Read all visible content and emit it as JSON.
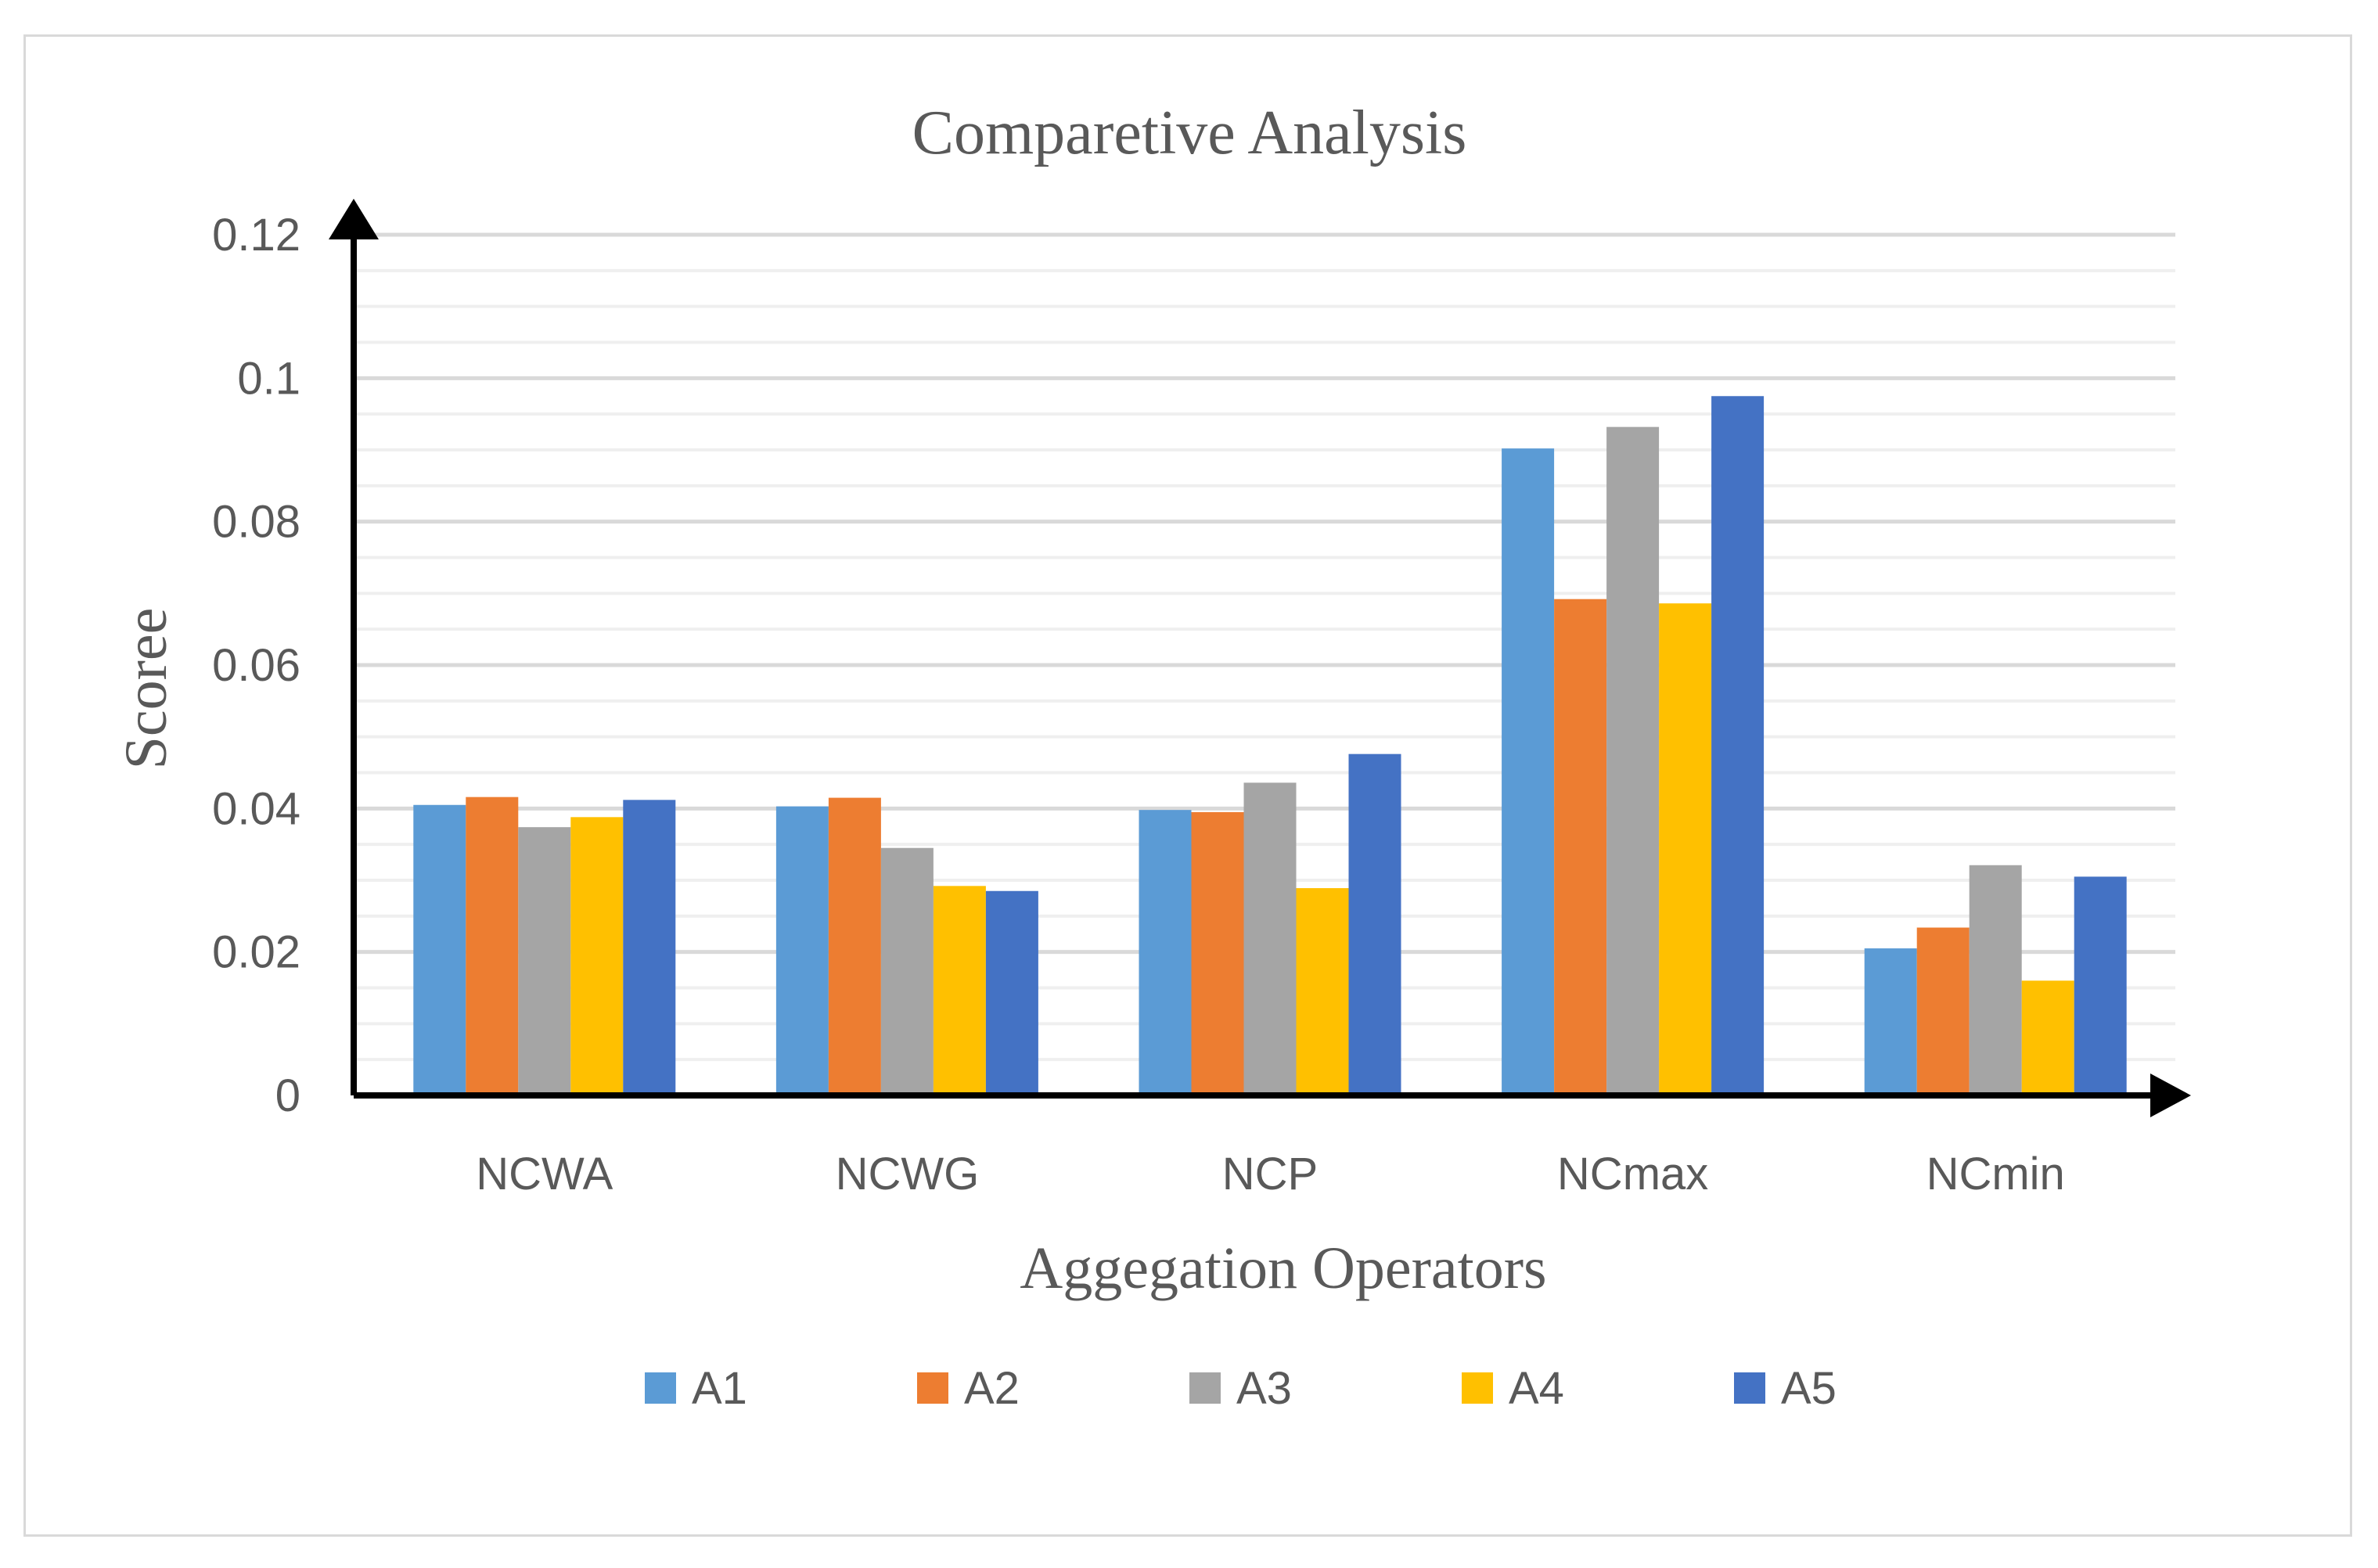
{
  "chart_data": {
    "type": "bar",
    "title": "Comparetive Analysis",
    "xlabel": "Aggegation Operators",
    "ylabel": "Scoree",
    "categories": [
      "NCWA",
      "NCWG",
      "NCP",
      "NCmax",
      "NCmin"
    ],
    "ylim": [
      0,
      0.12
    ],
    "yticks": [
      "0",
      "0.02",
      "0.04",
      "0.06",
      "0.08",
      "0.1",
      "0.12"
    ],
    "ytick_values": [
      0,
      0.02,
      0.04,
      0.06,
      0.08,
      0.1,
      0.12
    ],
    "minor_grid_step": 0.005,
    "grid": true,
    "legend_position": "bottom",
    "series": [
      {
        "name": "A1",
        "color": "#5b9bd5",
        "values": [
          0.0405,
          0.0403,
          0.0398,
          0.0902,
          0.0205
        ]
      },
      {
        "name": "A2",
        "color": "#ed7d31",
        "values": [
          0.0416,
          0.0415,
          0.0395,
          0.0692,
          0.0234
        ]
      },
      {
        "name": "A3",
        "color": "#a5a5a5",
        "values": [
          0.0374,
          0.0345,
          0.0436,
          0.0932,
          0.0321
        ]
      },
      {
        "name": "A4",
        "color": "#ffc000",
        "values": [
          0.0388,
          0.0292,
          0.0289,
          0.0686,
          0.016
        ]
      },
      {
        "name": "A5",
        "color": "#4472c4",
        "values": [
          0.0412,
          0.0285,
          0.0476,
          0.0975,
          0.0305
        ]
      }
    ]
  }
}
